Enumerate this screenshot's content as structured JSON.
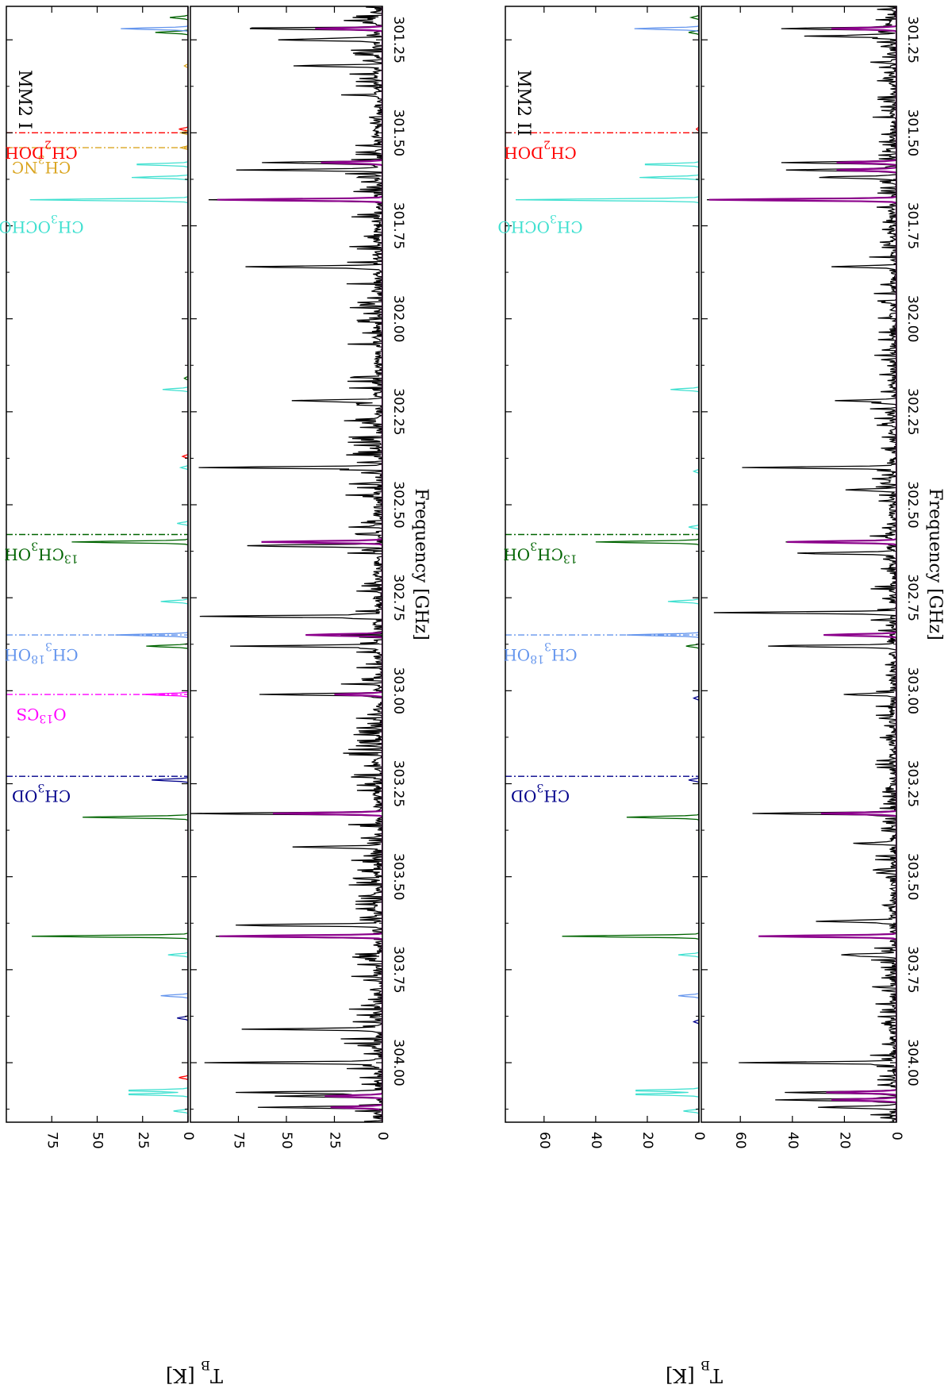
{
  "figure": {
    "x_label": "Frequency [GHz]",
    "y_label": "T_B [K]",
    "colors": {
      "observed": "#000000",
      "model": "#8B008B",
      "CH3NC": "#DAA520",
      "CH2DOH": "#FF0000",
      "CH3OCHO": "#40E0D0",
      "13CH3OH": "#006400",
      "CH318OH": "#6495ED",
      "O13CS": "#FF00FF",
      "CH3OD": "#00008B"
    }
  },
  "chart_data": [
    {
      "type": "line",
      "panel_id": "mm2-1-species",
      "title": "MM2 I",
      "xlabel": "Frequency [GHz]",
      "ylabel": "T_B [K]",
      "xlim": [
        301.16,
        304.16
      ],
      "ylim": [
        0,
        100
      ],
      "xticks": [
        "301.25",
        "301.50",
        "301.75",
        "302.00",
        "302.25",
        "302.50",
        "302.75",
        "303.00",
        "303.25",
        "303.50",
        "303.75",
        "304.00"
      ],
      "yticks": [
        "0",
        "25",
        "50",
        "75"
      ],
      "labels": [
        {
          "text": "CH3NC",
          "base": "CH",
          "sub": "3",
          "rest": "NC",
          "freq": 301.54,
          "color": "#DAA520"
        },
        {
          "text": "CH2DOH",
          "base": "CH",
          "sub": "2",
          "rest": "DOH",
          "freq": 301.5,
          "color": "#FF0000"
        },
        {
          "text": "CH3OCHO",
          "base": "CH",
          "sub": "3",
          "rest": "OCHO",
          "freq": 301.7,
          "color": "#40E0D0"
        },
        {
          "text": "13CH3OH",
          "pre": "13",
          "base": "CH",
          "sub": "3",
          "rest": "OH",
          "freq": 302.58,
          "color": "#006400"
        },
        {
          "text": "CH318OH",
          "base": "CH",
          "sub": "3",
          "sup": "18",
          "rest": "OH",
          "freq": 302.85,
          "color": "#6495ED"
        },
        {
          "text": "O13CS",
          "base": "O",
          "sup": "13",
          "rest": "CS",
          "freq": 303.01,
          "color": "#FF00FF"
        },
        {
          "text": "CH3OD",
          "base": "CH",
          "sub": "3",
          "rest": "OD",
          "freq": 303.23,
          "color": "#00008B"
        }
      ],
      "markers": [
        {
          "freq": 301.54,
          "color": "#DAA520"
        },
        {
          "freq": 301.5,
          "color": "#FF0000"
        },
        {
          "freq": 302.58,
          "color": "#006400"
        },
        {
          "freq": 302.85,
          "color": "#6495ED"
        },
        {
          "freq": 303.01,
          "color": "#FF00FF"
        },
        {
          "freq": 303.23,
          "color": "#00008B"
        }
      ],
      "series": [
        {
          "name": "CH3OCHO",
          "color": "#40E0D0",
          "peaks": [
            [
              301.68,
              87
            ],
            [
              301.62,
              31
            ],
            [
              301.585,
              31
            ],
            [
              302.19,
              14
            ],
            [
              302.4,
              4
            ],
            [
              302.55,
              6
            ],
            [
              302.76,
              15
            ],
            [
              303.71,
              11
            ],
            [
              304.075,
              36
            ],
            [
              304.085,
              36
            ],
            [
              304.13,
              8
            ]
          ]
        },
        {
          "name": "13CH3OH",
          "color": "#006400",
          "peaks": [
            [
              301.19,
              10
            ],
            [
              301.23,
              18
            ],
            [
              302.6,
              64
            ],
            [
              302.88,
              23
            ],
            [
              303.34,
              58
            ],
            [
              303.66,
              86
            ],
            [
              302.16,
              2
            ]
          ]
        },
        {
          "name": "CH318OH",
          "color": "#6495ED",
          "peaks": [
            [
              301.22,
              37
            ],
            [
              302.85,
              40
            ],
            [
              303.82,
              15
            ]
          ]
        },
        {
          "name": "CH2DOH",
          "color": "#FF0000",
          "peaks": [
            [
              301.49,
              5
            ],
            [
              302.37,
              3
            ],
            [
              304.04,
              5
            ]
          ]
        },
        {
          "name": "CH3NC",
          "color": "#DAA520",
          "peaks": [
            [
              301.54,
              4
            ],
            [
              301.5,
              4
            ],
            [
              301.32,
              2
            ]
          ]
        },
        {
          "name": "O13CS",
          "color": "#FF00FF",
          "peaks": [
            [
              303.01,
              25
            ]
          ]
        },
        {
          "name": "CH3OD",
          "color": "#00008B",
          "peaks": [
            [
              303.24,
              20
            ],
            [
              303.88,
              6
            ]
          ]
        }
      ]
    },
    {
      "type": "line",
      "panel_id": "mm2-1-spectrum",
      "title": "",
      "xlabel": "Frequency [GHz]",
      "ylabel": "T_B [K]",
      "xlim": [
        301.16,
        304.16
      ],
      "ylim": [
        0,
        100
      ],
      "xticks": [
        "301.25",
        "301.50",
        "301.75",
        "302.00",
        "302.25",
        "302.50",
        "302.75",
        "303.00",
        "303.25",
        "303.50",
        "303.75",
        "304.00"
      ],
      "yticks": [
        "0",
        "25",
        "50",
        "75"
      ],
      "series": [
        {
          "name": "observed",
          "color": "#000000",
          "noise": 7,
          "noise_density": 2.5,
          "seed": 11,
          "peaks": [
            [
              301.22,
              70
            ],
            [
              301.25,
              55
            ],
            [
              301.32,
              45
            ],
            [
              301.58,
              62
            ],
            [
              301.6,
              60
            ],
            [
              301.68,
              88
            ],
            [
              301.86,
              62
            ],
            [
              302.22,
              45
            ],
            [
              302.4,
              95
            ],
            [
              302.61,
              70
            ],
            [
              302.8,
              97
            ],
            [
              302.88,
              68
            ],
            [
              303.01,
              60
            ],
            [
              303.33,
              98
            ],
            [
              303.42,
              45
            ],
            [
              303.63,
              78
            ],
            [
              303.66,
              85
            ],
            [
              303.91,
              55
            ],
            [
              304.0,
              90
            ],
            [
              304.08,
              75
            ],
            [
              304.12,
              60
            ],
            [
              304.09,
              55
            ]
          ]
        },
        {
          "name": "model",
          "color": "#8B008B",
          "noise": 0,
          "noise_density": 0,
          "seed": 0,
          "peaks": [
            [
              301.22,
              35
            ],
            [
              301.58,
              32
            ],
            [
              301.68,
              86
            ],
            [
              302.6,
              63
            ],
            [
              302.85,
              40
            ],
            [
              303.01,
              25
            ],
            [
              303.33,
              57
            ],
            [
              303.66,
              85
            ],
            [
              304.09,
              30
            ],
            [
              304.12,
              27
            ]
          ]
        }
      ]
    },
    {
      "type": "line",
      "panel_id": "mm2-2-species",
      "title": "MM2 II",
      "xlabel": "Frequency [GHz]",
      "ylabel": "T_B [K]",
      "xlim": [
        301.16,
        304.16
      ],
      "ylim": [
        0,
        75
      ],
      "xticks": [
        "301.25",
        "301.50",
        "301.75",
        "302.00",
        "302.25",
        "302.50",
        "302.75",
        "303.00",
        "303.25",
        "303.50",
        "303.75",
        "304.00"
      ],
      "yticks": [
        "0",
        "20",
        "40",
        "60"
      ],
      "labels": [
        {
          "text": "CH2DOH",
          "base": "CH",
          "sub": "2",
          "rest": "DOH",
          "freq": 301.5,
          "color": "#FF0000"
        },
        {
          "text": "CH3OCHO",
          "base": "CH",
          "sub": "3",
          "rest": "OCHO",
          "freq": 301.7,
          "color": "#40E0D0"
        },
        {
          "text": "13CH3OH",
          "pre": "13",
          "base": "CH",
          "sub": "3",
          "rest": "OH",
          "freq": 302.58,
          "color": "#006400"
        },
        {
          "text": "CH318OH",
          "base": "CH",
          "sub": "3",
          "sup": "18",
          "rest": "OH",
          "freq": 302.85,
          "color": "#6495ED"
        },
        {
          "text": "CH3OD",
          "base": "CH",
          "sub": "3",
          "rest": "OD",
          "freq": 303.23,
          "color": "#00008B"
        }
      ],
      "markers": [
        {
          "freq": 301.5,
          "color": "#FF0000"
        },
        {
          "freq": 302.58,
          "color": "#006400"
        },
        {
          "freq": 302.85,
          "color": "#6495ED"
        },
        {
          "freq": 303.23,
          "color": "#00008B"
        }
      ],
      "series": [
        {
          "name": "CH3OCHO",
          "color": "#40E0D0",
          "peaks": [
            [
              301.68,
              71
            ],
            [
              301.62,
              23
            ],
            [
              301.585,
              23
            ],
            [
              302.19,
              11
            ],
            [
              302.41,
              2
            ],
            [
              302.56,
              4
            ],
            [
              302.76,
              12
            ],
            [
              303.71,
              8
            ],
            [
              304.075,
              27
            ],
            [
              304.085,
              27
            ],
            [
              304.13,
              6
            ]
          ]
        },
        {
          "name": "13CH3OH",
          "color": "#006400",
          "peaks": [
            [
              301.19,
              3
            ],
            [
              301.23,
              4
            ],
            [
              302.6,
              40
            ],
            [
              302.88,
              5
            ],
            [
              303.34,
              28
            ],
            [
              303.66,
              53
            ]
          ]
        },
        {
          "name": "CH318OH",
          "color": "#6495ED",
          "peaks": [
            [
              301.22,
              25
            ],
            [
              302.85,
              28
            ],
            [
              303.82,
              8
            ]
          ]
        },
        {
          "name": "CH2DOH",
          "color": "#FF0000",
          "peaks": [
            [
              301.49,
              1
            ]
          ]
        },
        {
          "name": "CH3OD",
          "color": "#00008B",
          "peaks": [
            [
              303.24,
              4
            ],
            [
              303.89,
              2
            ],
            [
              303.02,
              2
            ]
          ]
        }
      ]
    },
    {
      "type": "line",
      "panel_id": "mm2-2-spectrum",
      "title": "",
      "xlabel": "Frequency [GHz]",
      "ylabel": "T_B [K]",
      "xlim": [
        301.16,
        304.16
      ],
      "ylim": [
        0,
        75
      ],
      "xticks": [
        "301.25",
        "301.50",
        "301.75",
        "302.00",
        "302.25",
        "302.50",
        "302.75",
        "303.00",
        "303.25",
        "303.50",
        "303.75",
        "304.00"
      ],
      "yticks": [
        "0",
        "20",
        "40",
        "60"
      ],
      "series": [
        {
          "name": "observed",
          "color": "#000000",
          "noise": 4,
          "noise_density": 2.0,
          "seed": 29,
          "peaks": [
            [
              301.22,
              45
            ],
            [
              301.24,
              30
            ],
            [
              301.58,
              42
            ],
            [
              301.6,
              42
            ],
            [
              301.62,
              30
            ],
            [
              301.68,
              72
            ],
            [
              301.86,
              20
            ],
            [
              302.22,
              22
            ],
            [
              302.4,
              55
            ],
            [
              302.46,
              20
            ],
            [
              302.6,
              42
            ],
            [
              302.63,
              37
            ],
            [
              302.79,
              68
            ],
            [
              302.88,
              50
            ],
            [
              303.01,
              20
            ],
            [
              303.33,
              56
            ],
            [
              303.41,
              10
            ],
            [
              303.62,
              30
            ],
            [
              303.66,
              53
            ],
            [
              303.71,
              22
            ],
            [
              304.0,
              58
            ],
            [
              304.08,
              43
            ],
            [
              304.1,
              45
            ],
            [
              304.12,
              30
            ]
          ]
        },
        {
          "name": "model",
          "color": "#8B008B",
          "noise": 0,
          "noise_density": 0,
          "seed": 0,
          "peaks": [
            [
              301.22,
              25
            ],
            [
              301.58,
              23
            ],
            [
              301.6,
              23
            ],
            [
              301.68,
              72
            ],
            [
              302.6,
              42
            ],
            [
              302.85,
              28
            ],
            [
              303.33,
              29
            ],
            [
              303.66,
              53
            ],
            [
              304.08,
              27
            ],
            [
              304.1,
              25
            ]
          ]
        }
      ]
    }
  ]
}
